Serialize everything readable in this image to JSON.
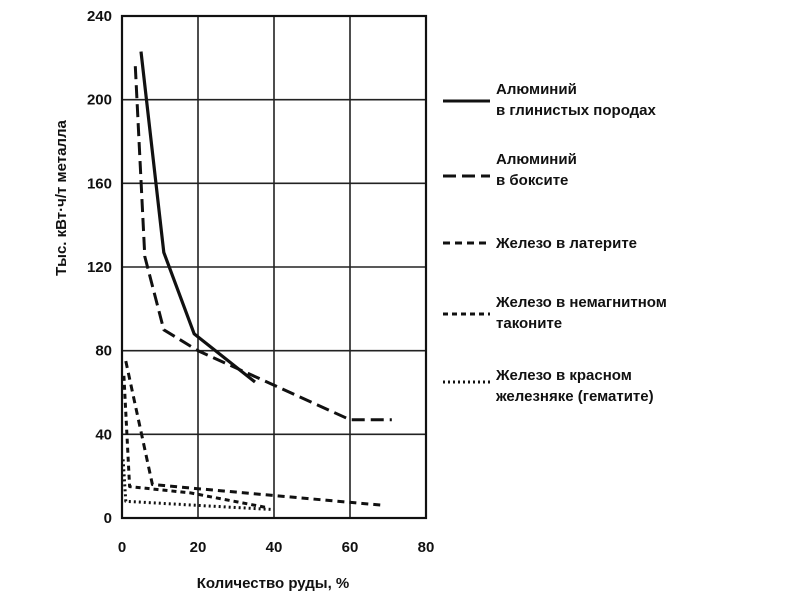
{
  "chart_data": {
    "type": "line",
    "title": "",
    "xlabel": "Количество руды, %",
    "ylabel": "Тыс. кВт·ч/т металла",
    "xlim": [
      0,
      80
    ],
    "ylim": [
      0,
      240
    ],
    "x_ticks": [
      "0",
      "20",
      "40",
      "60",
      "80"
    ],
    "y_ticks": [
      "0",
      "40",
      "80",
      "120",
      "160",
      "200",
      "240"
    ],
    "grid": true,
    "legend_position": "right",
    "series": [
      {
        "name": "Алюминий в глинистых породах",
        "legend_lines": [
          "Алюминий",
          "в глинистых породах"
        ],
        "dash": "solid",
        "color": "#111111",
        "x": [
          5,
          11,
          19,
          35
        ],
        "y": [
          223,
          127,
          88,
          65
        ]
      },
      {
        "name": "Алюминий в боксите",
        "legend_lines": [
          "Алюминий",
          "в боксите"
        ],
        "dash": "long-dash",
        "color": "#111111",
        "x": [
          3.5,
          6,
          11,
          20,
          60,
          71
        ],
        "y": [
          216,
          125,
          90,
          80,
          47,
          47
        ]
      },
      {
        "name": "Железо в латерите",
        "legend_lines": [
          "Железо в латерите"
        ],
        "dash": "dash",
        "color": "#111111",
        "x": [
          1,
          8,
          20,
          69
        ],
        "y": [
          75,
          16,
          14,
          6
        ]
      },
      {
        "name": "Железо в немагнитном таконите",
        "legend_lines": [
          "Железо в немагнитном",
          "таконите"
        ],
        "dash": "short-dash",
        "color": "#111111",
        "x": [
          0.5,
          2,
          18,
          38
        ],
        "y": [
          68,
          15,
          12,
          5
        ]
      },
      {
        "name": "Железо в красном железняке (гематите)",
        "legend_lines": [
          "Железо в красном",
          "железняке (гематите)"
        ],
        "dash": "dotted",
        "color": "#111111",
        "x": [
          0.3,
          1,
          20,
          40
        ],
        "y": [
          28,
          8,
          6,
          4
        ]
      }
    ]
  }
}
